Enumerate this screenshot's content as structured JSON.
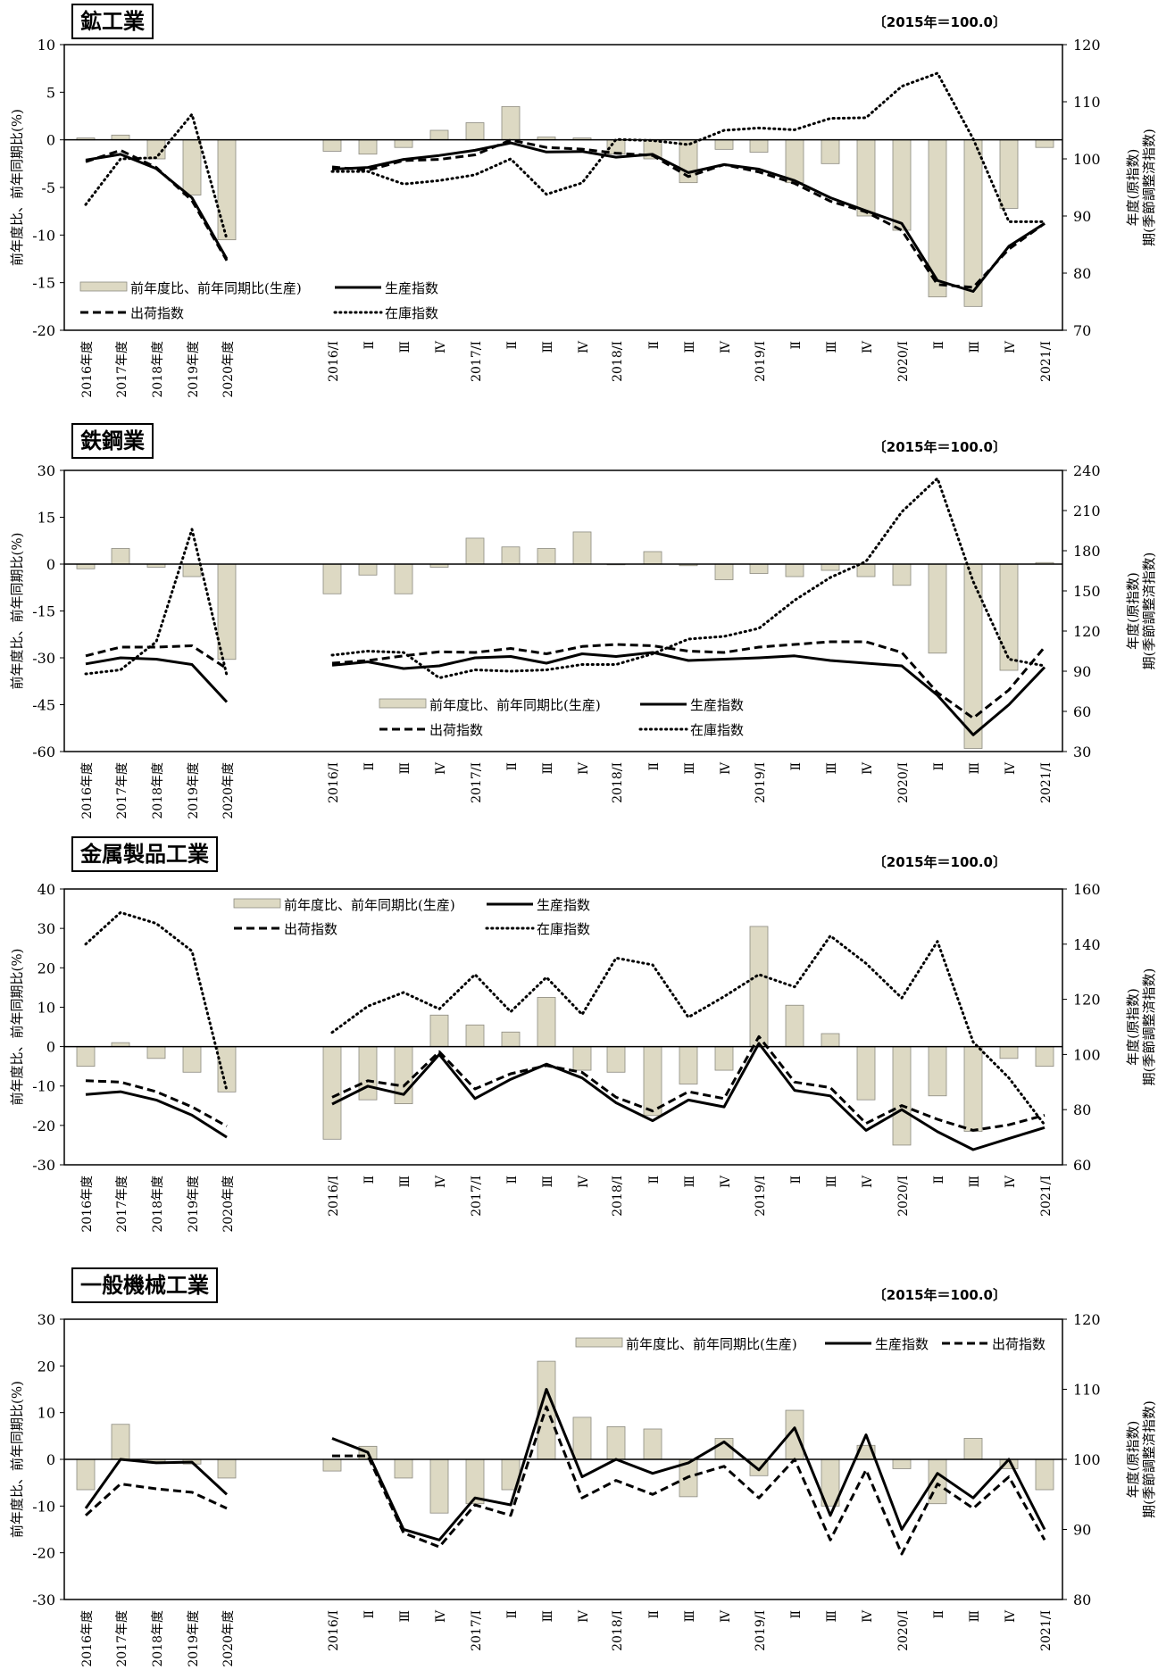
{
  "base_label": "〔2015年＝100.0〕",
  "x_categories": [
    "2016年度",
    "2017年度",
    "2018年度",
    "2019年度",
    "2020年度",
    "2016/Ⅰ",
    "Ⅱ",
    "Ⅲ",
    "Ⅳ",
    "2017/Ⅰ",
    "Ⅱ",
    "Ⅲ",
    "Ⅳ",
    "2018/Ⅰ",
    "Ⅱ",
    "Ⅲ",
    "Ⅳ",
    "2019/Ⅰ",
    "Ⅱ",
    "Ⅲ",
    "Ⅳ",
    "2020/Ⅰ",
    "Ⅱ",
    "Ⅲ",
    "Ⅳ",
    "2021/Ⅰ"
  ],
  "left_axis_label": "前年度比、前年同期比(%)",
  "right_axis_label_1": "年度(原指数)",
  "right_axis_label_2": "期(季節調整済指数)",
  "legend": {
    "bar": "前年度比、前年同期比(生産)",
    "production": "生産指数",
    "shipment": "出荷指数",
    "inventory": "在庫指数"
  },
  "chart_data": [
    {
      "type": "bar",
      "title": "鉱工業",
      "ylim": [
        -20,
        10
      ],
      "yticks": [
        10,
        5,
        0,
        -5,
        -10,
        -15,
        -20
      ],
      "y2lim": [
        70,
        120
      ],
      "y2ticks": [
        120,
        110,
        100,
        90,
        80,
        70
      ],
      "series": [
        {
          "name": "前年度比、前年同期比(生産)",
          "axis": "left",
          "values": [
            0.2,
            0.5,
            -2.0,
            -5.8,
            -10.5,
            -1.2,
            -1.5,
            -0.8,
            1.0,
            1.8,
            3.5,
            0.3,
            0.2,
            -1.5,
            -2.0,
            -4.5,
            -1.0,
            -1.3,
            -4.5,
            -2.5,
            -8.0,
            -9.5,
            -16.5,
            -17.5,
            -7.2,
            -0.8
          ]
        },
        {
          "name": "生産指数",
          "axis": "right",
          "values": [
            99.8,
            100.8,
            98.3,
            93.2,
            82.5,
            98.2,
            98.5,
            99.9,
            100.6,
            101.5,
            102.8,
            101.2,
            101.3,
            100.3,
            100.8,
            97.6,
            99.0,
            98.2,
            96.2,
            93.2,
            90.9,
            88.7,
            78.7,
            76.8,
            84.7,
            88.7
          ]
        },
        {
          "name": "出荷指数",
          "axis": "right",
          "values": [
            99.5,
            101.5,
            98.5,
            92.7,
            82.2,
            98.6,
            98.0,
            99.7,
            99.9,
            100.7,
            103.3,
            102.0,
            101.7,
            101.0,
            100.6,
            96.9,
            99.0,
            97.7,
            95.7,
            92.6,
            90.7,
            87.5,
            78.0,
            77.5,
            84.2,
            88.7
          ]
        },
        {
          "name": "在庫指数",
          "axis": "right",
          "values": [
            92.0,
            100.0,
            100.2,
            107.8,
            86.0,
            97.8,
            97.8,
            95.6,
            96.2,
            97.2,
            100.0,
            93.8,
            95.8,
            103.4,
            103.2,
            102.5,
            105.0,
            105.4,
            105.1,
            107.1,
            107.2,
            112.7,
            115.0,
            103.5,
            89.0,
            89.0
          ]
        }
      ]
    },
    {
      "type": "bar",
      "title": "鉄鋼業",
      "ylim": [
        -60,
        30
      ],
      "yticks": [
        30,
        15,
        0,
        -15,
        -30,
        -45,
        -60
      ],
      "y2lim": [
        30,
        240
      ],
      "y2ticks": [
        240,
        210,
        180,
        150,
        120,
        90,
        60,
        30
      ],
      "series": [
        {
          "name": "前年度比、前年同期比(生産)",
          "axis": "left",
          "values": [
            -1.5,
            5.0,
            -1.0,
            -4.0,
            -30.5,
            -9.5,
            -3.5,
            -9.5,
            -1.0,
            8.3,
            5.5,
            5.0,
            10.3,
            0.0,
            4.0,
            -0.5,
            -5.0,
            -3.0,
            -4.0,
            -2.0,
            -4.0,
            -6.8,
            -28.5,
            -59.0,
            -34.0,
            0.5
          ]
        },
        {
          "name": "生産指数",
          "axis": "right",
          "values": [
            95.5,
            100.0,
            99.0,
            95.0,
            67.0,
            94.5,
            97.0,
            92.0,
            94.0,
            100.0,
            101.0,
            96.0,
            103.0,
            101.0,
            104.0,
            98.0,
            99.0,
            100.0,
            101.5,
            98.0,
            96.0,
            94.0,
            72.0,
            42.5,
            65.0,
            93.0
          ]
        },
        {
          "name": "出荷指数",
          "axis": "right",
          "values": [
            101.5,
            108.0,
            108.0,
            109.0,
            92.0,
            96.0,
            98.0,
            101.5,
            104.5,
            104.0,
            107.0,
            103.0,
            108.5,
            110.0,
            109.0,
            105.0,
            104.0,
            108.0,
            110.0,
            112.0,
            112.0,
            104.0,
            74.0,
            55.0,
            76.0,
            108.0
          ]
        },
        {
          "name": "在庫指数",
          "axis": "right",
          "values": [
            88.0,
            91.0,
            112.0,
            196.0,
            87.0,
            102.0,
            105.0,
            104.0,
            85.0,
            91.0,
            90.0,
            91.0,
            95.0,
            95.0,
            103.0,
            114.0,
            116.0,
            122.0,
            143.0,
            160.0,
            172.0,
            209.0,
            234.0,
            157.0,
            99.0,
            94.0
          ]
        }
      ]
    },
    {
      "type": "bar",
      "title": "金属製品工業",
      "ylim": [
        -30,
        40
      ],
      "yticks": [
        40,
        30,
        20,
        10,
        0,
        -10,
        -20,
        -30
      ],
      "y2lim": [
        60,
        160
      ],
      "y2ticks": [
        160,
        140,
        120,
        100,
        80,
        60
      ],
      "series": [
        {
          "name": "前年度比、前年同期比(生産)",
          "axis": "left",
          "values": [
            -5.0,
            1.0,
            -3.0,
            -6.5,
            -11.5,
            -23.5,
            -13.5,
            -14.5,
            8.0,
            5.5,
            3.7,
            12.5,
            -6.0,
            -6.5,
            -17.5,
            -9.5,
            -6.0,
            30.5,
            10.5,
            3.3,
            -13.5,
            -25.0,
            -12.5,
            -21.5,
            -3.0,
            -5.0
          ]
        },
        {
          "name": "生産指数",
          "axis": "right",
          "values": [
            85.5,
            86.5,
            83.5,
            78.0,
            70.0,
            82.0,
            88.5,
            85.5,
            100.0,
            84.0,
            91.0,
            96.5,
            91.5,
            82.5,
            76.0,
            83.5,
            81.0,
            104.0,
            87.0,
            85.0,
            72.5,
            80.0,
            72.0,
            65.5,
            69.5,
            73.5
          ]
        },
        {
          "name": "出荷指数",
          "axis": "right",
          "values": [
            90.5,
            90.0,
            86.5,
            81.0,
            74.0,
            84.5,
            90.5,
            88.5,
            101.0,
            87.5,
            93.0,
            96.0,
            93.5,
            84.5,
            79.5,
            86.5,
            84.0,
            106.5,
            90.0,
            88.0,
            75.0,
            81.5,
            76.5,
            72.5,
            74.5,
            78.0
          ]
        },
        {
          "name": "在庫指数",
          "axis": "right",
          "values": [
            140.0,
            151.5,
            147.5,
            137.5,
            87.0,
            108.0,
            117.5,
            122.5,
            116.5,
            129.0,
            115.5,
            128.0,
            114.5,
            135.0,
            132.5,
            113.5,
            121.0,
            129.0,
            124.5,
            143.0,
            133.0,
            120.5,
            141.0,
            104.5,
            91.5,
            74.5
          ]
        }
      ]
    },
    {
      "type": "bar",
      "title": "一般機械工業",
      "ylim": [
        -30,
        30
      ],
      "yticks": [
        30,
        20,
        10,
        0,
        -10,
        -20,
        -30
      ],
      "y2lim": [
        80,
        120
      ],
      "y2ticks": [
        120,
        110,
        100,
        90,
        80
      ],
      "series": [
        {
          "name": "前年度比、前年同期比(生産)",
          "axis": "left",
          "values": [
            -6.5,
            7.5,
            -0.5,
            -1.0,
            -4.0,
            -2.5,
            2.8,
            -4.0,
            -11.5,
            -9.5,
            -6.5,
            21.0,
            9.0,
            7.0,
            6.5,
            -8.0,
            4.5,
            -3.5,
            10.5,
            -10.0,
            3.0,
            -2.0,
            -9.5,
            4.5,
            -2.0,
            -6.5
          ]
        },
        {
          "name": "生産指数",
          "axis": "right",
          "values": [
            93.0,
            100.0,
            99.5,
            99.6,
            95.0,
            103.0,
            101.0,
            90.0,
            88.5,
            94.5,
            93.5,
            110.0,
            97.5,
            100.0,
            98.0,
            99.5,
            102.5,
            98.5,
            104.5,
            92.0,
            103.5,
            90.0,
            98.0,
            94.5,
            100.0,
            90.0
          ]
        },
        {
          "name": "出荷指数",
          "axis": "right",
          "values": [
            92.0,
            96.5,
            95.8,
            95.3,
            93.0,
            100.5,
            100.5,
            89.5,
            87.5,
            93.5,
            92.0,
            107.5,
            94.5,
            97.0,
            95.0,
            97.5,
            99.0,
            94.5,
            100.0,
            88.5,
            98.5,
            86.5,
            96.5,
            93.0,
            97.5,
            88.5
          ]
        }
      ]
    }
  ]
}
